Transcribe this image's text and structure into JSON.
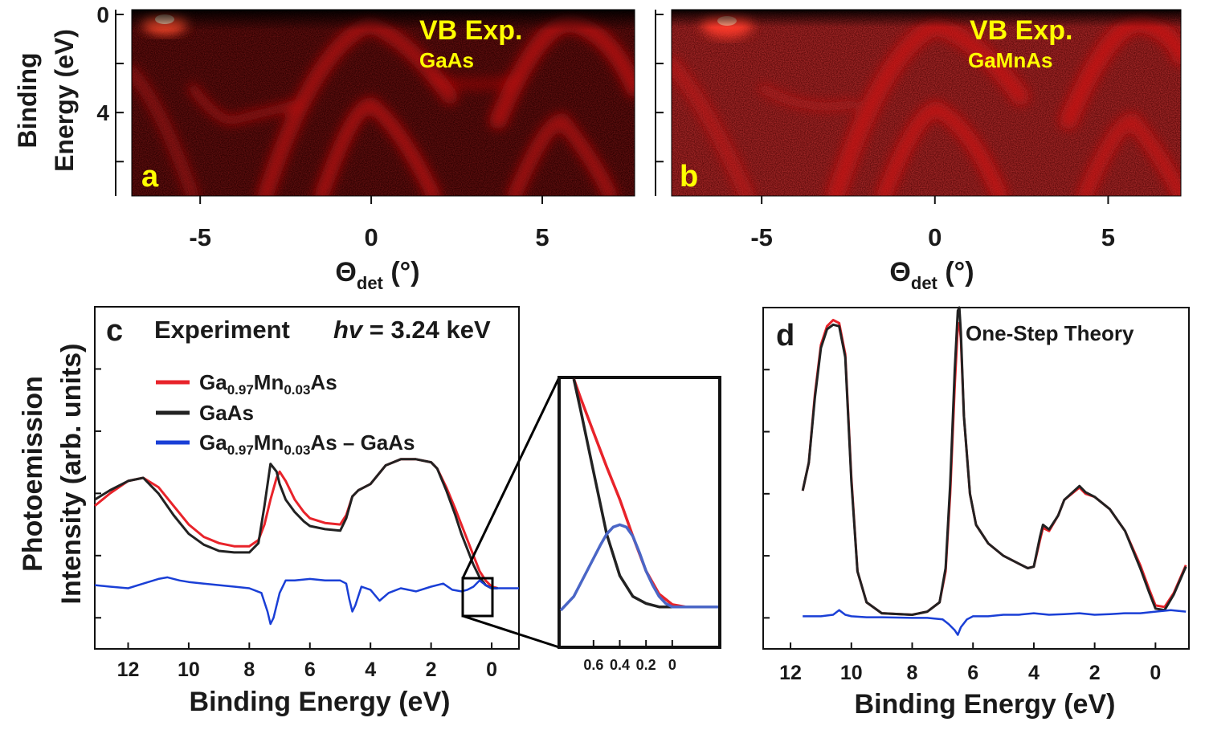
{
  "colors": {
    "red": "#e8232a",
    "black": "#222222",
    "blue": "#1a3fd6",
    "yellow": "#ffff00",
    "inset_blue": "#4a66c6"
  },
  "chart_data": [
    {
      "id": "a",
      "type": "heatmap",
      "panel_letter": "a",
      "title": "VB Exp.",
      "subtitle": "GaAs",
      "xlabel_main": "Θ",
      "xlabel_sub": "det",
      "xlabel_unit": " (°)",
      "ylabel_line1": "Binding",
      "ylabel_line2": "Energy (eV)",
      "xlim": [
        -7,
        7.7
      ],
      "ylim": [
        0,
        7.4
      ],
      "xticks": [
        "-5",
        "0",
        "5"
      ],
      "yticks": [
        "0",
        "4"
      ]
    },
    {
      "id": "b",
      "type": "heatmap",
      "panel_letter": "b",
      "title": "VB Exp.",
      "subtitle": "GaMnAs",
      "xlabel_main": "Θ",
      "xlabel_sub": "det",
      "xlabel_unit": " (°)",
      "xlim": [
        -7.6,
        7.1
      ],
      "ylim": [
        0,
        7.4
      ],
      "xticks": [
        "-5",
        "0",
        "5"
      ]
    },
    {
      "id": "c",
      "type": "line",
      "panel_letter": "c",
      "title": "Experiment",
      "energy_label": {
        "symbol": "hv",
        "rest": " = 3.24 keV"
      },
      "xlabel": "Binding Energy (eV)",
      "ylabel_line1": "Photoemission",
      "ylabel_line2": "Intensity (arb. units)",
      "xlim": [
        13.1,
        -0.9
      ],
      "ylim": [
        0,
        11
      ],
      "xticks": [
        "12",
        "10",
        "8",
        "6",
        "4",
        "2",
        "0"
      ],
      "legend": [
        {
          "pre": "Ga",
          "sub1": "0.97",
          "mid": "Mn",
          "sub2": "0.03",
          "post": "As"
        },
        {
          "plain": "GaAs"
        },
        {
          "pre": "Ga",
          "sub1": "0.97",
          "mid": "Mn",
          "sub2": "0.03",
          "post": "As – GaAs"
        }
      ],
      "series": [
        {
          "name": "Ga0.97Mn0.03As",
          "x": [
            13.1,
            12.6,
            12.0,
            11.5,
            11.0,
            10.5,
            10.0,
            9.5,
            9.0,
            8.5,
            8.0,
            7.7,
            7.5,
            7.3,
            7.1,
            7.0,
            6.8,
            6.5,
            6.2,
            6.0,
            5.5,
            5.0,
            4.8,
            4.6,
            4.4,
            4.2,
            4.0,
            3.5,
            3.0,
            2.5,
            2.0,
            1.8,
            1.5,
            1.2,
            1.0,
            0.8,
            0.6,
            0.4,
            0.2,
            0.0,
            -0.2
          ],
          "y": [
            4.6,
            5.0,
            5.4,
            5.5,
            5.2,
            4.6,
            4.0,
            3.6,
            3.4,
            3.3,
            3.3,
            3.5,
            4.0,
            4.8,
            5.5,
            5.7,
            5.4,
            4.8,
            4.4,
            4.2,
            4.05,
            4.0,
            4.3,
            4.9,
            5.1,
            5.2,
            5.3,
            5.9,
            6.1,
            6.1,
            6.0,
            5.8,
            5.2,
            4.5,
            4.0,
            3.5,
            3.0,
            2.5,
            2.2,
            2.0,
            1.95
          ]
        },
        {
          "name": "GaAs",
          "x": [
            13.1,
            12.6,
            12.0,
            11.5,
            11.0,
            10.5,
            10.0,
            9.5,
            9.0,
            8.5,
            8.0,
            7.7,
            7.5,
            7.3,
            7.1,
            7.0,
            6.8,
            6.5,
            6.2,
            6.0,
            5.5,
            5.0,
            4.8,
            4.6,
            4.4,
            4.2,
            4.0,
            3.5,
            3.0,
            2.5,
            2.0,
            1.8,
            1.5,
            1.2,
            1.0,
            0.8,
            0.6,
            0.4,
            0.2,
            0.0,
            -0.2
          ],
          "y": [
            4.8,
            5.1,
            5.4,
            5.5,
            5.0,
            4.3,
            3.7,
            3.35,
            3.15,
            3.1,
            3.1,
            3.4,
            4.6,
            5.95,
            5.7,
            5.3,
            4.8,
            4.4,
            4.1,
            3.95,
            3.85,
            3.8,
            4.2,
            4.9,
            5.1,
            5.2,
            5.3,
            5.9,
            6.1,
            6.1,
            6.0,
            5.8,
            5.1,
            4.3,
            3.7,
            3.2,
            2.7,
            2.3,
            2.05,
            1.95,
            1.95
          ]
        },
        {
          "name": "Ga0.97Mn0.03As – GaAs",
          "x": [
            13.1,
            12.6,
            12.0,
            11.5,
            11.0,
            10.7,
            10.3,
            10.0,
            9.5,
            9.0,
            8.5,
            8.0,
            7.6,
            7.4,
            7.3,
            7.2,
            7.0,
            6.8,
            6.5,
            6.0,
            5.5,
            5.0,
            4.8,
            4.7,
            4.6,
            4.5,
            4.3,
            4.0,
            3.7,
            3.4,
            3.0,
            2.5,
            2.0,
            1.6,
            1.3,
            1.0,
            0.8,
            0.6,
            0.4,
            0.2,
            0.0,
            -0.9
          ],
          "y": [
            2.05,
            2.0,
            1.95,
            2.1,
            2.25,
            2.3,
            2.2,
            2.15,
            2.1,
            2.05,
            2.0,
            1.95,
            1.8,
            1.2,
            0.8,
            1.0,
            1.8,
            2.2,
            2.2,
            2.25,
            2.2,
            2.2,
            2.1,
            1.6,
            1.2,
            1.4,
            2.0,
            1.9,
            1.55,
            1.8,
            1.95,
            1.85,
            2.0,
            2.1,
            1.9,
            1.85,
            1.9,
            2.0,
            2.2,
            2.05,
            1.95,
            1.95
          ]
        }
      ],
      "inset": {
        "xlim": [
          0.85,
          -0.35
        ],
        "ylim": [
          0,
          1
        ],
        "xticks": [
          "0.6",
          "0.4",
          "0.2",
          "0"
        ],
        "series": [
          {
            "name": "Ga0.97Mn0.03As",
            "x": [
              0.75,
              0.7,
              0.6,
              0.5,
              0.4,
              0.3,
              0.2,
              0.1,
              0.0,
              -0.1,
              -0.2,
              -0.35
            ],
            "y": [
              1.0,
              0.92,
              0.77,
              0.62,
              0.48,
              0.32,
              0.17,
              0.07,
              0.025,
              0.015,
              0.015,
              0.015
            ]
          },
          {
            "name": "GaAs",
            "x": [
              0.75,
              0.7,
              0.6,
              0.5,
              0.4,
              0.3,
              0.2,
              0.1,
              0.0,
              -0.1,
              -0.2,
              -0.35
            ],
            "y": [
              1.0,
              0.87,
              0.6,
              0.33,
              0.15,
              0.06,
              0.03,
              0.015,
              0.015,
              0.015,
              0.015,
              0.015
            ]
          },
          {
            "name": "Ga0.97Mn0.03As – GaAs",
            "x": [
              0.85,
              0.75,
              0.65,
              0.55,
              0.5,
              0.45,
              0.4,
              0.35,
              0.3,
              0.25,
              0.2,
              0.15,
              0.1,
              0.05,
              0.0,
              -0.1,
              -0.2,
              -0.35
            ],
            "y": [
              0.0,
              0.06,
              0.17,
              0.28,
              0.33,
              0.36,
              0.37,
              0.36,
              0.32,
              0.25,
              0.17,
              0.11,
              0.06,
              0.03,
              0.015,
              0.015,
              0.015,
              0.015
            ]
          }
        ]
      }
    },
    {
      "id": "d",
      "type": "line",
      "panel_letter": "d",
      "title": "One-Step  Theory",
      "xlabel": "Binding Energy (eV)",
      "xlim": [
        12.9,
        -1.1
      ],
      "ylim": [
        0,
        11
      ],
      "xticks": [
        "12",
        "10",
        "8",
        "6",
        "4",
        "2",
        "0"
      ],
      "series": [
        {
          "name": "Ga0.97Mn0.03As",
          "x": [
            11.6,
            11.4,
            11.2,
            11.0,
            10.8,
            10.6,
            10.4,
            10.2,
            10.0,
            9.8,
            9.5,
            9.0,
            8.0,
            7.5,
            7.1,
            6.9,
            6.75,
            6.6,
            6.5,
            6.45,
            6.4,
            6.3,
            6.1,
            5.9,
            5.5,
            5.0,
            4.6,
            4.4,
            4.2,
            4.0,
            3.8,
            3.7,
            3.5,
            3.2,
            3.0,
            2.5,
            2.3,
            2.0,
            1.5,
            1.0,
            0.5,
            0.2,
            0.0,
            -0.3,
            -0.6,
            -1.0
          ],
          "y": [
            5.1,
            6.0,
            8.2,
            9.8,
            10.4,
            10.6,
            10.5,
            9.5,
            5.5,
            2.5,
            1.5,
            1.15,
            1.1,
            1.2,
            1.5,
            2.5,
            5.0,
            8.5,
            10.4,
            10.5,
            10.0,
            7.5,
            5.0,
            4.0,
            3.4,
            3.0,
            2.8,
            2.7,
            2.6,
            2.65,
            3.5,
            3.9,
            3.8,
            4.3,
            4.8,
            5.2,
            5.0,
            4.9,
            4.5,
            3.8,
            2.7,
            1.9,
            1.4,
            1.35,
            1.8,
            2.7
          ]
        },
        {
          "name": "GaAs",
          "x": [
            11.6,
            11.4,
            11.2,
            11.0,
            10.8,
            10.6,
            10.4,
            10.2,
            10.0,
            9.8,
            9.5,
            9.0,
            8.0,
            7.5,
            7.1,
            6.9,
            6.75,
            6.6,
            6.5,
            6.45,
            6.4,
            6.3,
            6.1,
            5.9,
            5.5,
            5.0,
            4.6,
            4.4,
            4.2,
            4.0,
            3.8,
            3.7,
            3.5,
            3.2,
            3.0,
            2.5,
            2.3,
            2.0,
            1.5,
            1.0,
            0.5,
            0.2,
            0.0,
            -0.3,
            -0.6,
            -1.0
          ],
          "y": [
            5.1,
            6.0,
            8.1,
            9.7,
            10.3,
            10.45,
            10.4,
            9.4,
            5.4,
            2.5,
            1.5,
            1.15,
            1.1,
            1.2,
            1.5,
            2.6,
            5.3,
            9.0,
            10.9,
            11.0,
            10.2,
            7.5,
            5.0,
            4.0,
            3.4,
            3.0,
            2.8,
            2.7,
            2.6,
            2.65,
            3.6,
            4.0,
            3.85,
            4.3,
            4.8,
            5.25,
            5.05,
            4.9,
            4.5,
            3.8,
            2.6,
            1.8,
            1.3,
            1.25,
            1.75,
            2.65
          ]
        },
        {
          "name": "Ga0.97Mn0.03As – GaAs",
          "x": [
            11.6,
            11.0,
            10.6,
            10.4,
            10.2,
            10.0,
            9.5,
            9.0,
            8.0,
            7.5,
            7.0,
            6.8,
            6.6,
            6.5,
            6.4,
            6.2,
            6.0,
            5.5,
            5.0,
            4.5,
            4.0,
            3.5,
            3.0,
            2.5,
            2.0,
            1.5,
            1.0,
            0.5,
            0.0,
            -0.5,
            -1.0
          ],
          "y": [
            1.05,
            1.05,
            1.1,
            1.25,
            1.1,
            1.05,
            1.02,
            1.02,
            1.0,
            1.0,
            0.95,
            0.8,
            0.6,
            0.45,
            0.7,
            0.95,
            1.05,
            1.05,
            1.1,
            1.1,
            1.15,
            1.1,
            1.12,
            1.15,
            1.1,
            1.12,
            1.15,
            1.15,
            1.2,
            1.25,
            1.2
          ]
        }
      ]
    }
  ]
}
